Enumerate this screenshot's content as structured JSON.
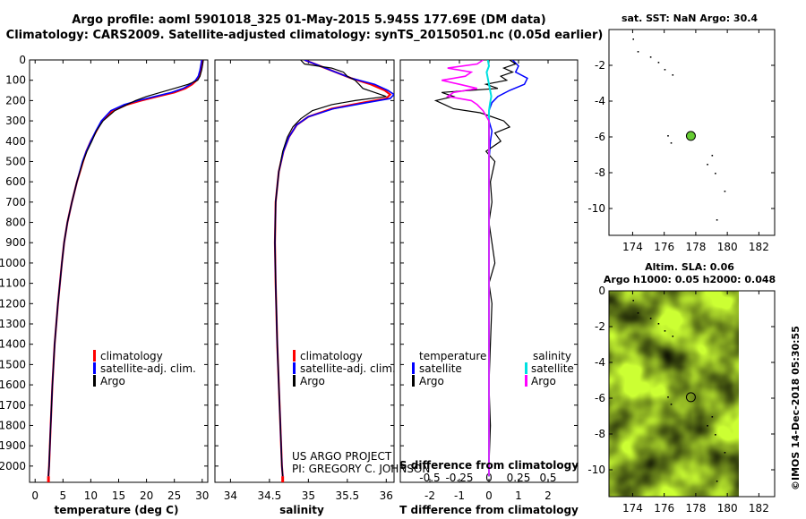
{
  "title": {
    "line1": "Argo profile: aoml 5901018_325 01-May-2015 5.945S 177.69E (DM data)",
    "line2": "Climatology: CARS2009. Satellite-adjusted climatology: synTS_20150501.nc (0.05d earlier)"
  },
  "credits": {
    "project": "US ARGO PROJECT",
    "pi": "PI: GREGORY C. JOHNSON",
    "imos": "©IMOS 14-Dec-2018 05:30:55"
  },
  "colors": {
    "climatology": "#ff0000",
    "satellite": "#0000ff",
    "argo": "#000000",
    "salinity_satellite": "#00e0e0",
    "salinity_argo": "#ff00ff",
    "ocean_light": "#ccff33",
    "ocean_dark": "#33cc22",
    "marker": "#66cc33"
  },
  "chart_data": [
    {
      "id": "temperature",
      "type": "line",
      "xlabel": "temperature (deg C)",
      "ylabel": "",
      "xlim": [
        -1,
        31
      ],
      "ylim": [
        2080,
        0
      ],
      "xticks": [
        "0",
        "5",
        "10",
        "15",
        "20",
        "25",
        "30"
      ],
      "xtick_values": [
        0,
        5,
        10,
        15,
        20,
        25,
        30
      ],
      "yticks": [
        "0",
        "100",
        "200",
        "300",
        "400",
        "500",
        "600",
        "700",
        "800",
        "900",
        "1000",
        "1100",
        "1200",
        "1300",
        "1400",
        "1500",
        "1600",
        "1700",
        "1800",
        "1900",
        "2000"
      ],
      "ytick_values": [
        0,
        100,
        200,
        300,
        400,
        500,
        600,
        700,
        800,
        900,
        1000,
        1100,
        1200,
        1300,
        1400,
        1500,
        1600,
        1700,
        1800,
        1900,
        2000
      ],
      "legend": [
        "climatology",
        "satellite-adj. clim.",
        "Argo"
      ],
      "series": [
        {
          "name": "climatology",
          "depth": [
            0,
            20,
            50,
            80,
            100,
            120,
            140,
            160,
            180,
            200,
            220,
            250,
            300,
            350,
            400,
            450,
            500,
            600,
            700,
            800,
            900,
            1000,
            1200,
            1400,
            1600,
            1800,
            2000,
            2050
          ],
          "values": [
            30.1,
            30.0,
            29.8,
            29.5,
            29.0,
            28.2,
            27.0,
            25.0,
            22.0,
            19.0,
            16.5,
            14.0,
            12.0,
            11.0,
            10.0,
            9.2,
            8.6,
            7.5,
            6.6,
            5.8,
            5.2,
            4.8,
            4.1,
            3.5,
            3.1,
            2.8,
            2.5,
            2.4
          ]
        },
        {
          "name": "satellite-adj. clim.",
          "depth": [
            0,
            20,
            50,
            80,
            100,
            120,
            140,
            160,
            180,
            200,
            220,
            250,
            300,
            350,
            400,
            450,
            500,
            600,
            700,
            800,
            900,
            1000,
            1200,
            1400,
            1600,
            1800,
            2000,
            2050
          ],
          "values": [
            29.9,
            29.8,
            29.6,
            29.3,
            28.8,
            27.9,
            26.6,
            24.5,
            21.5,
            18.5,
            16.0,
            13.6,
            11.9,
            10.9,
            10.0,
            9.2,
            8.5,
            7.5,
            6.6,
            5.8,
            5.2,
            4.8,
            4.1,
            3.5,
            3.1,
            2.8,
            2.5,
            2.4
          ]
        },
        {
          "name": "Argo",
          "depth": [
            0,
            20,
            50,
            80,
            100,
            120,
            140,
            160,
            180,
            200,
            220,
            250,
            300,
            350,
            400,
            450,
            500,
            600,
            700,
            800,
            900,
            1000,
            1200,
            1400,
            1600,
            1800,
            2000,
            2050
          ],
          "values": [
            30.2,
            30.1,
            29.9,
            29.6,
            29.2,
            27.5,
            25.0,
            22.5,
            20.0,
            18.0,
            16.5,
            14.3,
            12.2,
            11.0,
            10.2,
            9.3,
            8.6,
            7.5,
            6.6,
            5.8,
            5.2,
            4.8,
            4.1,
            3.5,
            3.1,
            2.8,
            2.5,
            2.4
          ]
        }
      ]
    },
    {
      "id": "salinity",
      "type": "line",
      "xlabel": "salinity",
      "xlim": [
        33.8,
        36.1
      ],
      "ylim": [
        2080,
        0
      ],
      "xticks": [
        "34",
        "34.5",
        "35",
        "35.5",
        "36"
      ],
      "xtick_values": [
        34,
        34.5,
        35,
        35.5,
        36
      ],
      "legend": [
        "climatology",
        "satellite-adj. clim.",
        "Argo"
      ],
      "series": [
        {
          "name": "climatology",
          "depth": [
            0,
            30,
            60,
            90,
            120,
            150,
            170,
            190,
            210,
            240,
            280,
            320,
            380,
            450,
            550,
            700,
            900,
            1100,
            1400,
            1700,
            2000,
            2050
          ],
          "values": [
            34.95,
            35.15,
            35.35,
            35.55,
            35.8,
            35.98,
            36.05,
            36.0,
            35.7,
            35.3,
            35.0,
            34.85,
            34.75,
            34.68,
            34.62,
            34.58,
            34.57,
            34.58,
            34.6,
            34.63,
            34.66,
            34.67
          ]
        },
        {
          "name": "satellite-adj. clim.",
          "depth": [
            0,
            30,
            60,
            90,
            120,
            150,
            170,
            190,
            210,
            240,
            280,
            320,
            380,
            450,
            550,
            700,
            900,
            1100,
            1400,
            1700,
            2000,
            2050
          ],
          "values": [
            34.95,
            35.15,
            35.35,
            35.55,
            35.85,
            36.02,
            36.1,
            36.05,
            35.75,
            35.32,
            35.0,
            34.85,
            34.75,
            34.68,
            34.62,
            34.58,
            34.57,
            34.58,
            34.6,
            34.63,
            34.66,
            34.67
          ]
        },
        {
          "name": "Argo",
          "depth": [
            0,
            20,
            40,
            60,
            80,
            100,
            120,
            140,
            160,
            180,
            200,
            220,
            250,
            290,
            330,
            380,
            450,
            550,
            700,
            900,
            1100,
            1400,
            1700,
            2000,
            2050
          ],
          "values": [
            34.9,
            34.95,
            35.3,
            35.45,
            35.5,
            35.6,
            35.65,
            35.7,
            35.85,
            36.0,
            35.6,
            35.3,
            35.05,
            34.9,
            34.8,
            34.73,
            34.67,
            34.62,
            34.58,
            34.57,
            34.58,
            34.6,
            34.63,
            34.66,
            34.67
          ]
        }
      ]
    },
    {
      "id": "difference",
      "type": "line",
      "xlabel": "T difference from climatology",
      "xlabel_top": "S difference from climatology",
      "xlim": [
        -3,
        3
      ],
      "ylim": [
        2080,
        0
      ],
      "xticks": [
        "-2",
        "-1",
        "0",
        "1",
        "2"
      ],
      "xtick_values": [
        -2,
        -1,
        0,
        1,
        2
      ],
      "xticks_top": [
        "-0.5",
        "-0.25",
        "0",
        "0.25",
        "0.5"
      ],
      "legend_temperature_heading": "temperature",
      "legend_salinity_heading": "salinity",
      "legend": [
        "satellite",
        "Argo"
      ],
      "series": [
        {
          "name": "T satellite",
          "depth": [
            0,
            30,
            60,
            90,
            120,
            150,
            180,
            210,
            250,
            300,
            350,
            400,
            500,
            600,
            800,
            1000,
            1200,
            1500,
            1800,
            2050
          ],
          "values": [
            0.8,
            1.0,
            0.9,
            1.3,
            1.2,
            0.7,
            0.3,
            0.1,
            0.0,
            0.0,
            0.1,
            0.05,
            0.0,
            0.0,
            0.0,
            0.0,
            0.0,
            0.0,
            0.0,
            0.0
          ]
        },
        {
          "name": "T Argo",
          "depth": [
            0,
            20,
            40,
            60,
            80,
            100,
            120,
            140,
            160,
            180,
            200,
            220,
            240,
            260,
            280,
            300,
            330,
            360,
            400,
            450,
            500,
            600,
            700,
            800,
            900,
            1000,
            1100,
            1200,
            1400,
            1600,
            1800,
            2000,
            2050
          ],
          "values": [
            0.7,
            0.9,
            0.5,
            0.8,
            0.4,
            0.6,
            -0.1,
            0.3,
            -1.6,
            -1.2,
            -1.8,
            -1.5,
            -1.2,
            -0.3,
            0.1,
            0.5,
            0.7,
            0.2,
            0.4,
            -0.1,
            0.2,
            0.05,
            0.1,
            0.0,
            0.1,
            0.2,
            0.0,
            0.1,
            0.05,
            0.0,
            0.05,
            0.0,
            0.0
          ]
        },
        {
          "name": "S satellite",
          "depth": [
            0,
            30,
            60,
            90,
            120,
            150,
            180,
            210,
            250,
            300,
            400,
            600,
            800,
            1000,
            1500,
            2050
          ],
          "values": [
            -0.01,
            0.0,
            -0.02,
            -0.01,
            0.0,
            0.01,
            0.02,
            0.01,
            0.0,
            0.0,
            0.0,
            0.0,
            0.0,
            0.0,
            0.0,
            0.0
          ]
        },
        {
          "name": "S Argo",
          "depth": [
            0,
            20,
            40,
            60,
            80,
            100,
            120,
            140,
            160,
            180,
            200,
            220,
            250,
            300,
            400,
            600,
            1000,
            2050
          ],
          "values": [
            -0.05,
            -0.1,
            -0.35,
            -0.15,
            -0.2,
            -0.4,
            -0.25,
            -0.1,
            -0.3,
            -0.35,
            -0.15,
            -0.1,
            -0.05,
            0.0,
            0.0,
            0.0,
            0.0,
            0.0
          ]
        }
      ]
    },
    {
      "id": "sst-map",
      "type": "scatter",
      "title": "sat. SST: NaN Argo: 30.4",
      "xlim": [
        172.5,
        183
      ],
      "ylim": [
        -11.5,
        0
      ],
      "xticks": [
        "174",
        "176",
        "178",
        "180",
        "182"
      ],
      "xtick_values": [
        174,
        176,
        178,
        180,
        182
      ],
      "yticks": [
        "-2",
        "-4",
        "-6",
        "-8",
        "-10"
      ],
      "ytick_values": [
        -2,
        -4,
        -6,
        -8,
        -10
      ],
      "profile_location": [
        177.69,
        -5.945
      ],
      "islands": [
        [
          174.0,
          -0.5
        ],
        [
          174.3,
          -1.2
        ],
        [
          175.1,
          -1.5
        ],
        [
          175.6,
          -1.8
        ],
        [
          176.0,
          -2.2
        ],
        [
          176.5,
          -2.5
        ],
        [
          176.2,
          -5.9
        ],
        [
          176.4,
          -6.3
        ],
        [
          179.0,
          -7.0
        ],
        [
          178.7,
          -7.5
        ],
        [
          179.2,
          -8.0
        ],
        [
          179.8,
          -9.0
        ],
        [
          179.3,
          -10.6
        ]
      ]
    },
    {
      "id": "sla-map",
      "type": "heatmap",
      "title_line1": "Altim. SLA: 0.06",
      "title_line2": "Argo h1000: 0.05 h2000: 0.048",
      "xlim": [
        172.5,
        183
      ],
      "ylim": [
        -11.5,
        0
      ],
      "data_lon_max": 180.1,
      "xticks": [
        "174",
        "176",
        "178",
        "180",
        "182"
      ],
      "xtick_values": [
        174,
        176,
        178,
        180,
        182
      ],
      "yticks": [
        "0",
        "-2",
        "-4",
        "-6",
        "-8",
        "-10"
      ],
      "ytick_values": [
        0,
        -2,
        -4,
        -6,
        -8,
        -10
      ],
      "profile_location": [
        177.69,
        -5.945
      ],
      "islands": [
        [
          174.0,
          -0.5
        ],
        [
          174.3,
          -1.2
        ],
        [
          175.1,
          -1.5
        ],
        [
          175.6,
          -1.8
        ],
        [
          176.0,
          -2.2
        ],
        [
          176.5,
          -2.5
        ],
        [
          176.2,
          -5.9
        ],
        [
          176.4,
          -6.3
        ],
        [
          179.0,
          -7.0
        ],
        [
          178.7,
          -7.5
        ],
        [
          179.2,
          -8.0
        ],
        [
          179.8,
          -9.0
        ],
        [
          179.3,
          -10.6
        ]
      ]
    }
  ]
}
